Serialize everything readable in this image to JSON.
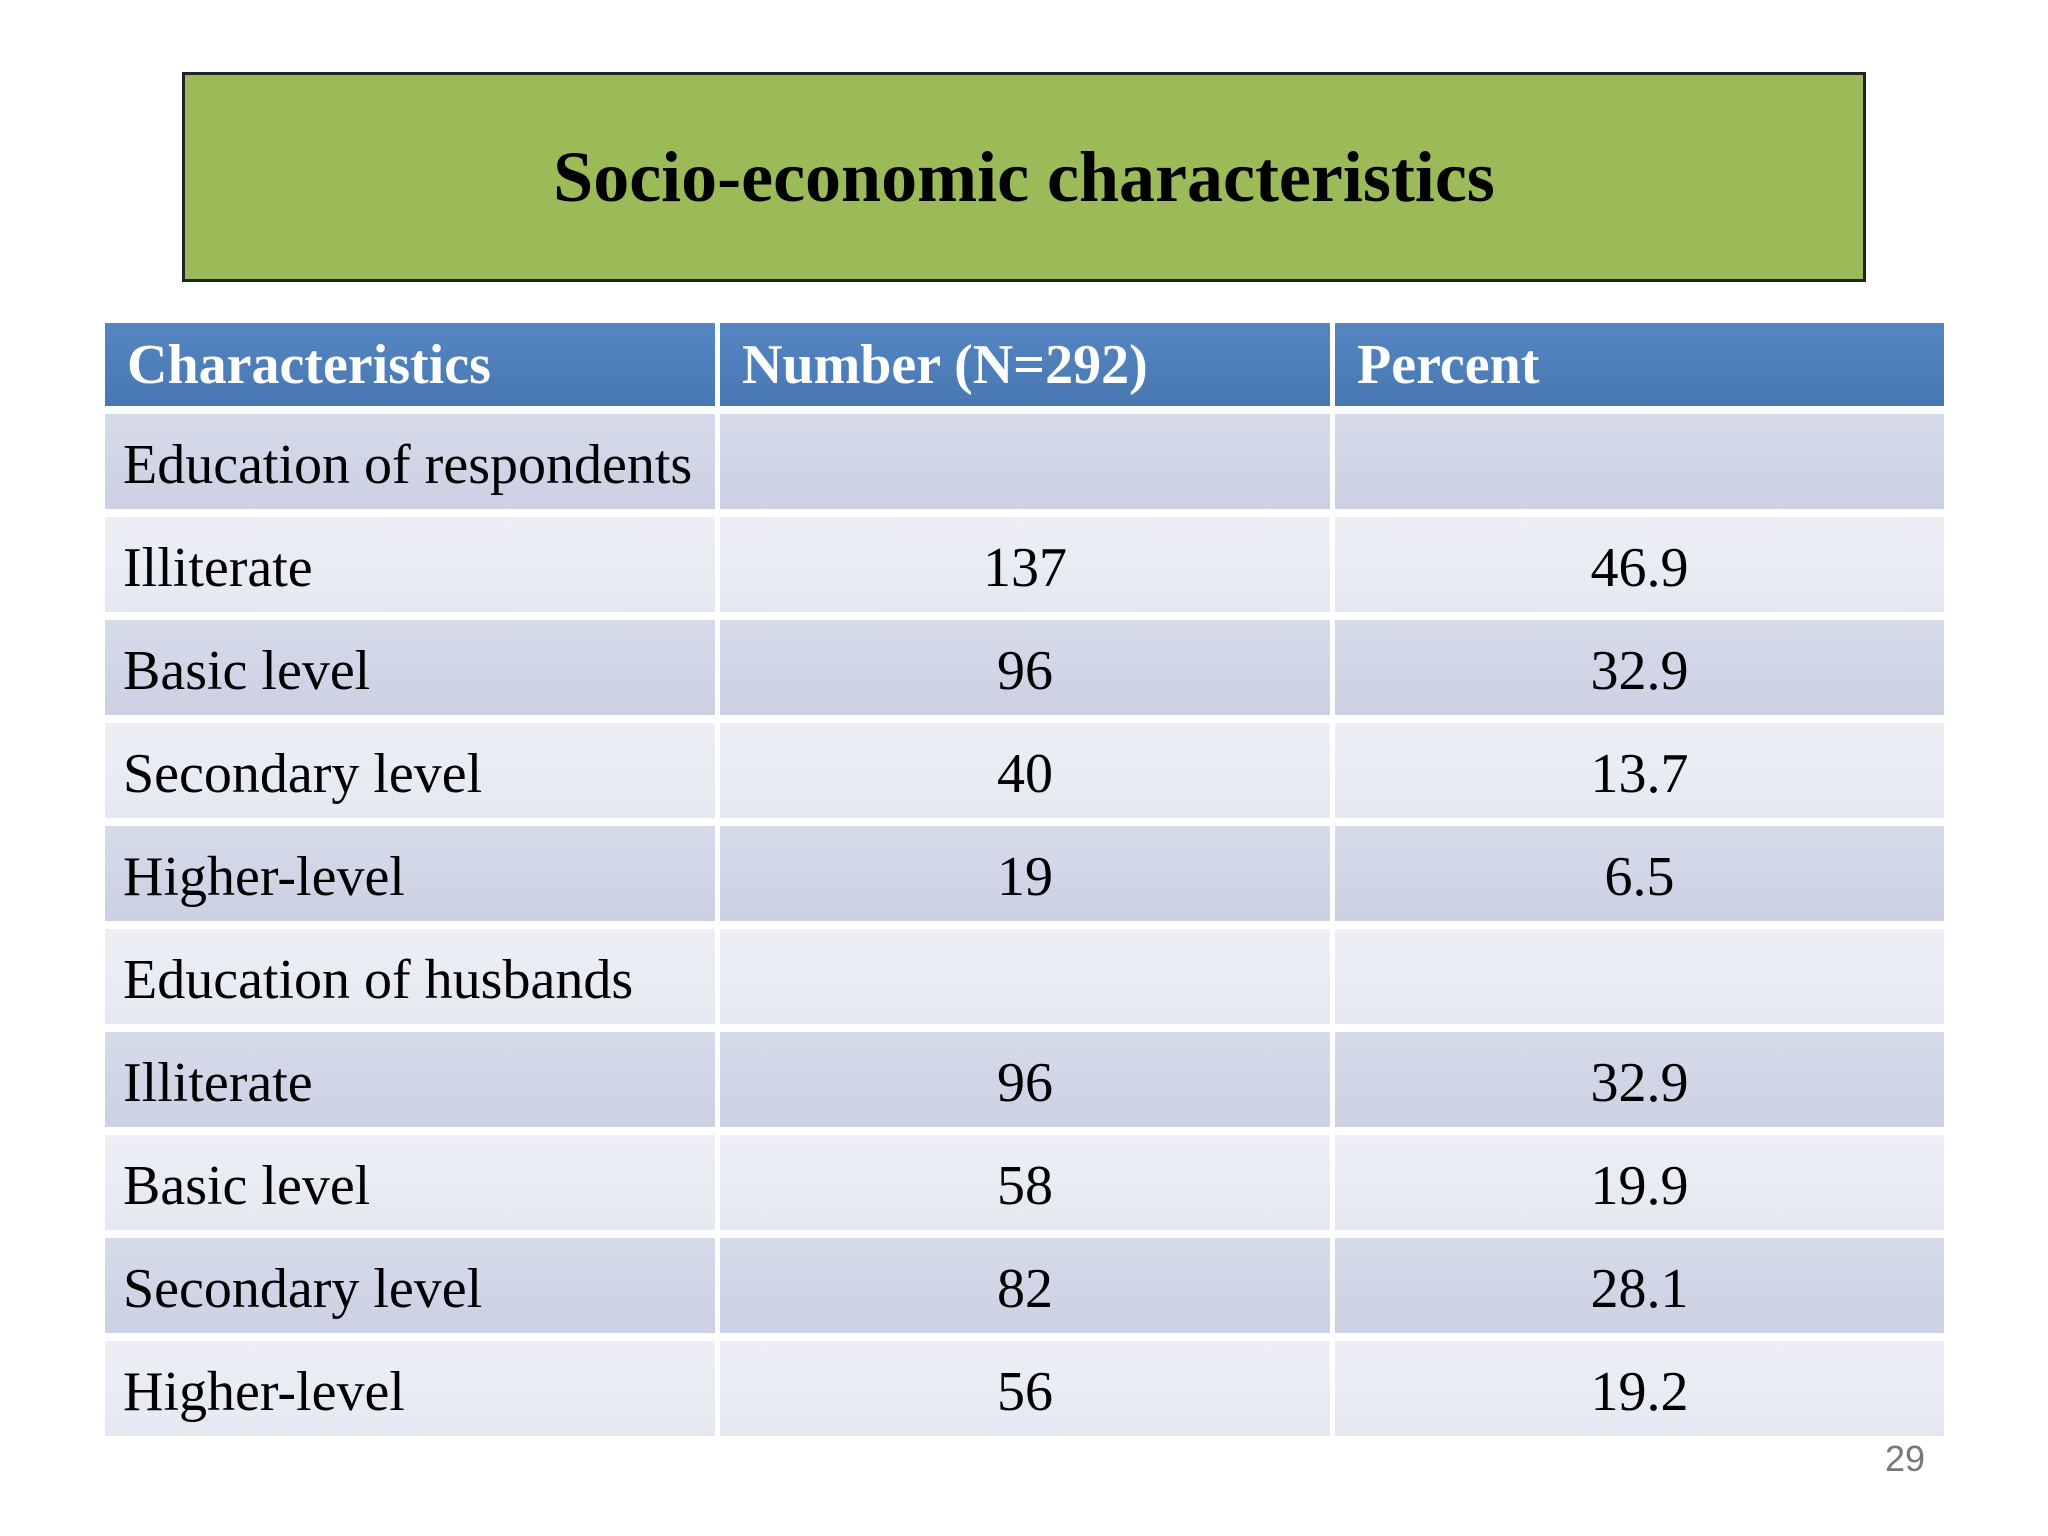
{
  "slide": {
    "title": "Socio-economic characteristics",
    "page_number": "29"
  },
  "colors": {
    "banner_green": "#9BBB59",
    "banner_border": "#222222",
    "header_blue": "#4D80BC",
    "row_band_dark": "#CFD4E5",
    "row_band_light": "#E9EBF2",
    "header_text": "#FFFFFF",
    "body_text": "#000000",
    "page_number_gray": "#787878"
  },
  "table": {
    "headers": [
      "Characteristics",
      "Number (N=292)",
      "Percent"
    ],
    "rows": [
      {
        "label": "Education of respondents",
        "number": "",
        "percent": ""
      },
      {
        "label": "Illiterate",
        "number": "137",
        "percent": "46.9"
      },
      {
        "label": "Basic level",
        "number": "96",
        "percent": "32.9"
      },
      {
        "label": "Secondary level",
        "number": "40",
        "percent": "13.7"
      },
      {
        "label": "Higher-level",
        "number": "19",
        "percent": "6.5"
      },
      {
        "label": "Education of husbands",
        "number": "",
        "percent": ""
      },
      {
        "label": "Illiterate",
        "number": "96",
        "percent": "32.9"
      },
      {
        "label": "Basic level",
        "number": "58",
        "percent": "19.9"
      },
      {
        "label": "Secondary level",
        "number": "82",
        "percent": "28.1"
      },
      {
        "label": "Higher-level",
        "number": "56",
        "percent": "19.2"
      }
    ]
  }
}
